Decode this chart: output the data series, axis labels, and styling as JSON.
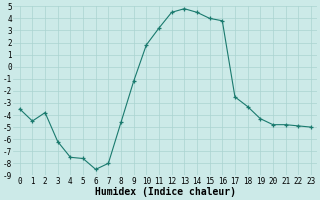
{
  "x": [
    0,
    1,
    2,
    3,
    4,
    5,
    6,
    7,
    8,
    9,
    10,
    11,
    12,
    13,
    14,
    15,
    16,
    17,
    18,
    19,
    20,
    21,
    22,
    23
  ],
  "y": [
    -3.5,
    -4.5,
    -3.8,
    -6.2,
    -7.5,
    -7.6,
    -8.5,
    -8.0,
    -4.6,
    -1.2,
    1.8,
    3.2,
    4.5,
    4.8,
    4.5,
    4.0,
    3.8,
    -2.5,
    -3.3,
    -4.3,
    -4.8,
    -4.8,
    -4.9,
    -5.0
  ],
  "xlabel": "Humidex (Indice chaleur)",
  "ylim": [
    -9,
    5
  ],
  "xlim": [
    -0.5,
    23.5
  ],
  "yticks": [
    5,
    4,
    3,
    2,
    1,
    0,
    -1,
    -2,
    -3,
    -4,
    -5,
    -6,
    -7,
    -8,
    -9
  ],
  "xticks": [
    0,
    1,
    2,
    3,
    4,
    5,
    6,
    7,
    8,
    9,
    10,
    11,
    12,
    13,
    14,
    15,
    16,
    17,
    18,
    19,
    20,
    21,
    22,
    23
  ],
  "line_color": "#1a7a6e",
  "marker_color": "#1a7a6e",
  "bg_color": "#cceae8",
  "grid_color": "#aad4d1",
  "xlabel_fontsize": 7,
  "tick_fontsize": 5.5
}
